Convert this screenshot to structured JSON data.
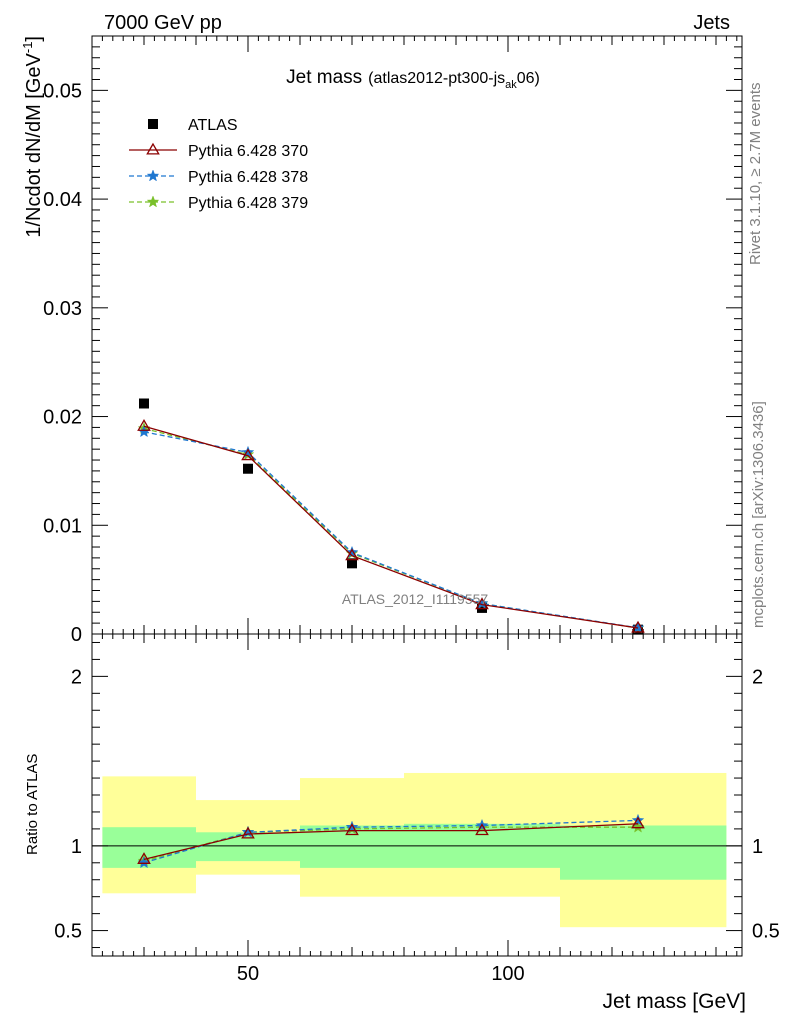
{
  "header": {
    "left": "7000 GeV pp",
    "right": "Jets"
  },
  "side_labels": {
    "rivet": "Rivet 3.1.10, ≥ 2.7M events",
    "mcplots": "mcplots.cern.ch [arXiv:1306.3436]"
  },
  "colors": {
    "atlas": "#000000",
    "p370": "#8b0000",
    "p378": "#1f77d0",
    "p379": "#7ac02a",
    "band_outer": "#ffff99",
    "band_inner": "#99ff99"
  },
  "chart_data": [
    {
      "type": "scatter",
      "title": "Jet mass",
      "title_sub_pre": "(atlas2012-pt300-js",
      "title_sub_sub": "ak",
      "title_sub_post": "06)",
      "ylabel_main": "1/Ncdot dN/dM [GeV",
      "ylabel_sup": "-1",
      "ylabel_end": "]",
      "watermark": "ATLAS_2012_I1119557",
      "xlim": [
        20,
        145
      ],
      "ylim": [
        0,
        0.055
      ],
      "yticks": [
        0,
        0.01,
        0.02,
        0.03,
        0.04,
        0.05
      ],
      "ytick_labels": [
        "0",
        "0.01",
        "0.02",
        "0.03",
        "0.04",
        "0.05"
      ],
      "x": [
        30,
        50,
        70,
        95,
        125
      ],
      "series": [
        {
          "name": "ATLAS",
          "values": [
            0.0212,
            0.0152,
            0.0065,
            0.0024,
            0.0004
          ]
        },
        {
          "name": "Pythia 6.428 370",
          "values": [
            0.0191,
            0.0164,
            0.0072,
            0.0027,
            0.00055
          ]
        },
        {
          "name": "Pythia 6.428 378",
          "values": [
            0.0186,
            0.0167,
            0.0075,
            0.0028,
            0.00057
          ]
        },
        {
          "name": "Pythia 6.428 379",
          "values": [
            0.0189,
            0.0165,
            0.0074,
            0.0028,
            0.00054
          ]
        }
      ],
      "legend": "top-left"
    },
    {
      "type": "line",
      "xlabel": "Jet mass [GeV]",
      "ylabel": "Ratio to ATLAS",
      "xlim": [
        20,
        145
      ],
      "ylim": [
        0.35,
        2.25
      ],
      "yticks": [
        0.5,
        1,
        2
      ],
      "ytick_labels": [
        "0.5",
        "1",
        "2"
      ],
      "xticks": [
        50,
        100
      ],
      "xtick_labels": [
        "50",
        "100"
      ],
      "x": [
        30,
        50,
        70,
        95,
        125
      ],
      "bands": [
        {
          "x0": 22,
          "x1": 40,
          "inner": [
            0.87,
            1.11
          ],
          "outer": [
            0.72,
            1.41
          ]
        },
        {
          "x0": 40,
          "x1": 60,
          "inner": [
            0.91,
            1.08
          ],
          "outer": [
            0.83,
            1.27
          ]
        },
        {
          "x0": 60,
          "x1": 80,
          "inner": [
            0.87,
            1.12
          ],
          "outer": [
            0.7,
            1.4
          ]
        },
        {
          "x0": 80,
          "x1": 110,
          "inner": [
            0.87,
            1.13
          ],
          "outer": [
            0.7,
            1.43
          ]
        },
        {
          "x0": 110,
          "x1": 142,
          "inner": [
            0.8,
            1.12
          ],
          "outer": [
            0.52,
            1.43
          ]
        }
      ],
      "series": [
        {
          "name": "Pythia 6.428 370",
          "values": [
            0.92,
            1.07,
            1.09,
            1.09,
            1.13
          ]
        },
        {
          "name": "Pythia 6.428 378",
          "values": [
            0.9,
            1.08,
            1.11,
            1.12,
            1.15
          ]
        },
        {
          "name": "Pythia 6.428 379",
          "values": [
            0.91,
            1.08,
            1.1,
            1.11,
            1.11
          ]
        }
      ]
    }
  ]
}
